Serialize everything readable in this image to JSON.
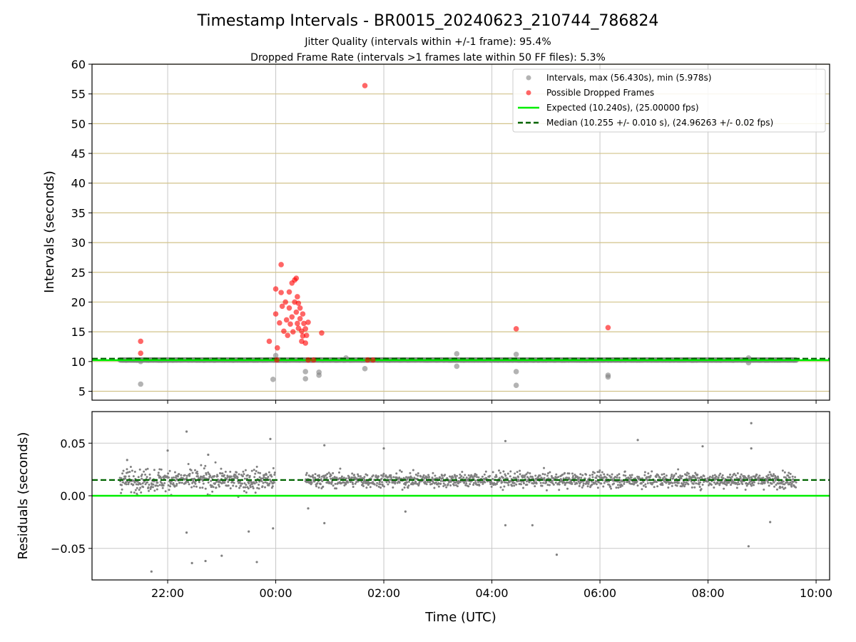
{
  "title": "Timestamp Intervals - BR0015_20240623_210744_786824",
  "subtitle_lines": [
    "Jitter Quality (intervals within +/-1 frame): 95.4%",
    "Dropped Frame Rate (intervals >1 frames late within 50 FF files): 5.3%"
  ],
  "colors": {
    "intervals": "#808080",
    "dropped": "#ff0000",
    "expected": "#00ee00",
    "median": "#006400",
    "top_grid": "#d2c38a",
    "grid": "#c8c8c8"
  },
  "chart_data": [
    {
      "type": "scatter",
      "ylabel": "Intervals (seconds)",
      "xlim_hours": [
        -3.4,
        10.25
      ],
      "ylim": [
        3.5,
        60
      ],
      "yticks": [
        5,
        10,
        15,
        20,
        25,
        30,
        35,
        40,
        45,
        50,
        55,
        60
      ],
      "grid": true,
      "legend_position": "top-right",
      "legend": [
        "Intervals, max (56.430s), min (5.978s)",
        "Possible Dropped Frames",
        "Expected (10.240s), (25.00000 fps)",
        "Median (10.255 +/- 0.010 s), (24.96263 +/- 0.02 fps)"
      ],
      "expected_value": 10.24,
      "median_value": 10.255,
      "intervals_band": {
        "x_start": "21:07",
        "x_end": "09:38",
        "y": 10.25
      },
      "intervals_outliers": [
        [
          -2.5,
          6.2
        ],
        [
          -2.5,
          10.0
        ],
        [
          -0.05,
          7.0
        ],
        [
          0.0,
          11.0
        ],
        [
          0.55,
          8.3
        ],
        [
          0.55,
          7.1
        ],
        [
          0.8,
          8.2
        ],
        [
          0.8,
          7.7
        ],
        [
          1.3,
          10.6
        ],
        [
          1.65,
          8.8
        ],
        [
          3.35,
          11.3
        ],
        [
          3.35,
          9.2
        ],
        [
          4.45,
          11.2
        ],
        [
          4.45,
          8.3
        ],
        [
          4.45,
          6.0
        ],
        [
          6.15,
          7.7
        ],
        [
          6.15,
          7.4
        ],
        [
          8.75,
          10.6
        ],
        [
          8.75,
          9.8
        ]
      ],
      "dropped_frames": [
        [
          -2.5,
          13.4
        ],
        [
          -2.5,
          11.4
        ],
        [
          -0.12,
          13.4
        ],
        [
          0.0,
          18.0
        ],
        [
          0.0,
          22.2
        ],
        [
          0.03,
          12.3
        ],
        [
          0.07,
          16.5
        ],
        [
          0.1,
          26.3
        ],
        [
          0.1,
          21.6
        ],
        [
          0.12,
          19.3
        ],
        [
          0.15,
          15.1
        ],
        [
          0.18,
          20.0
        ],
        [
          0.2,
          17.0
        ],
        [
          0.22,
          14.4
        ],
        [
          0.25,
          21.7
        ],
        [
          0.25,
          19.0
        ],
        [
          0.27,
          16.3
        ],
        [
          0.3,
          23.2
        ],
        [
          0.3,
          17.5
        ],
        [
          0.32,
          15.0
        ],
        [
          0.35,
          23.7
        ],
        [
          0.35,
          20.0
        ],
        [
          0.38,
          24.0
        ],
        [
          0.38,
          18.3
        ],
        [
          0.4,
          20.9
        ],
        [
          0.4,
          16.4
        ],
        [
          0.42,
          19.8
        ],
        [
          0.42,
          15.6
        ],
        [
          0.45,
          19.0
        ],
        [
          0.45,
          17.2
        ],
        [
          0.48,
          15.1
        ],
        [
          0.48,
          13.4
        ],
        [
          0.5,
          14.3
        ],
        [
          0.5,
          18.0
        ],
        [
          0.52,
          16.4
        ],
        [
          0.55,
          15.5
        ],
        [
          0.55,
          13.1
        ],
        [
          0.57,
          14.4
        ],
        [
          0.6,
          16.6
        ],
        [
          0.85,
          14.8
        ],
        [
          1.65,
          56.4
        ],
        [
          4.45,
          15.5
        ],
        [
          6.15,
          15.7
        ],
        [
          0.6,
          10.25
        ],
        [
          0.7,
          10.25
        ],
        [
          1.7,
          10.25
        ],
        [
          1.8,
          10.25
        ],
        [
          0.02,
          10.25
        ]
      ]
    },
    {
      "type": "scatter",
      "ylabel": "Residuals (seconds)",
      "xlabel": "Time (UTC)",
      "xlim_hours": [
        -3.4,
        10.25
      ],
      "ylim": [
        -0.08,
        0.08
      ],
      "yticks": [
        -0.05,
        0.0,
        0.05
      ],
      "ytick_labels": [
        "−0.05",
        "0.00",
        "0.05"
      ],
      "xticks_hours": [
        -2,
        0,
        2,
        4,
        6,
        8,
        10
      ],
      "xtick_labels": [
        "22:00",
        "00:00",
        "02:00",
        "04:00",
        "06:00",
        "08:00",
        "10:00"
      ],
      "grid": true,
      "expected_value": 0.0,
      "median_value": 0.015,
      "residual_center": 0.015,
      "residual_segments": [
        {
          "x_start": "21:07",
          "x_end": "23:59",
          "spread": 0.012
        },
        {
          "x_start": "00:33",
          "x_end": "09:38",
          "spread": 0.008
        }
      ],
      "residual_outliers": [
        [
          -2.75,
          0.034
        ],
        [
          -2.0,
          0.043
        ],
        [
          -1.65,
          0.061
        ],
        [
          -1.25,
          0.039
        ],
        [
          -0.1,
          0.054
        ],
        [
          -0.05,
          -0.031
        ],
        [
          -1.3,
          -0.062
        ],
        [
          -1.55,
          -0.064
        ],
        [
          -1.0,
          -0.057
        ],
        [
          -0.5,
          -0.034
        ],
        [
          -0.35,
          -0.063
        ],
        [
          -1.65,
          -0.035
        ],
        [
          -2.3,
          -0.072
        ],
        [
          0.9,
          0.048
        ],
        [
          0.9,
          -0.026
        ],
        [
          2.0,
          0.045
        ],
        [
          4.25,
          0.052
        ],
        [
          4.25,
          -0.028
        ],
        [
          4.75,
          -0.028
        ],
        [
          5.2,
          -0.056
        ],
        [
          6.7,
          0.053
        ],
        [
          7.9,
          0.047
        ],
        [
          8.8,
          0.069
        ],
        [
          8.75,
          -0.048
        ],
        [
          8.8,
          0.045
        ],
        [
          9.15,
          -0.025
        ],
        [
          0.6,
          -0.012
        ],
        [
          2.4,
          -0.015
        ]
      ]
    }
  ]
}
